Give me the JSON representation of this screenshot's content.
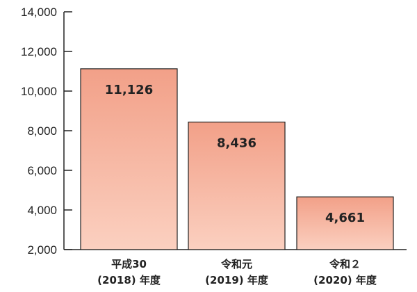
{
  "chart_data": {
    "type": "bar",
    "title": "",
    "xlabel": "",
    "ylabel": "",
    "categories": [
      {
        "line1": "平成30",
        "line2": "(2018) 年度"
      },
      {
        "line1": "令和元",
        "line2": "(2019) 年度"
      },
      {
        "line1": "令和２",
        "line2": "(2020) 年度"
      }
    ],
    "values": [
      11126,
      8436,
      4661
    ],
    "value_labels": [
      "11,126",
      "8,436",
      "4,661"
    ],
    "ylim": [
      2000,
      14000
    ],
    "yticks": [
      2000,
      4000,
      6000,
      8000,
      10000,
      12000,
      14000
    ],
    "ytick_labels": [
      "2,000",
      "4,000",
      "6,000",
      "8,000",
      "10,000",
      "12,000",
      "14,000"
    ],
    "grid": false,
    "legend": "none",
    "colors": {
      "bar_top": "#f2a088",
      "bar_bottom": "#fbd0c0",
      "bar_stroke": "#222222",
      "axis": "#222222"
    }
  }
}
